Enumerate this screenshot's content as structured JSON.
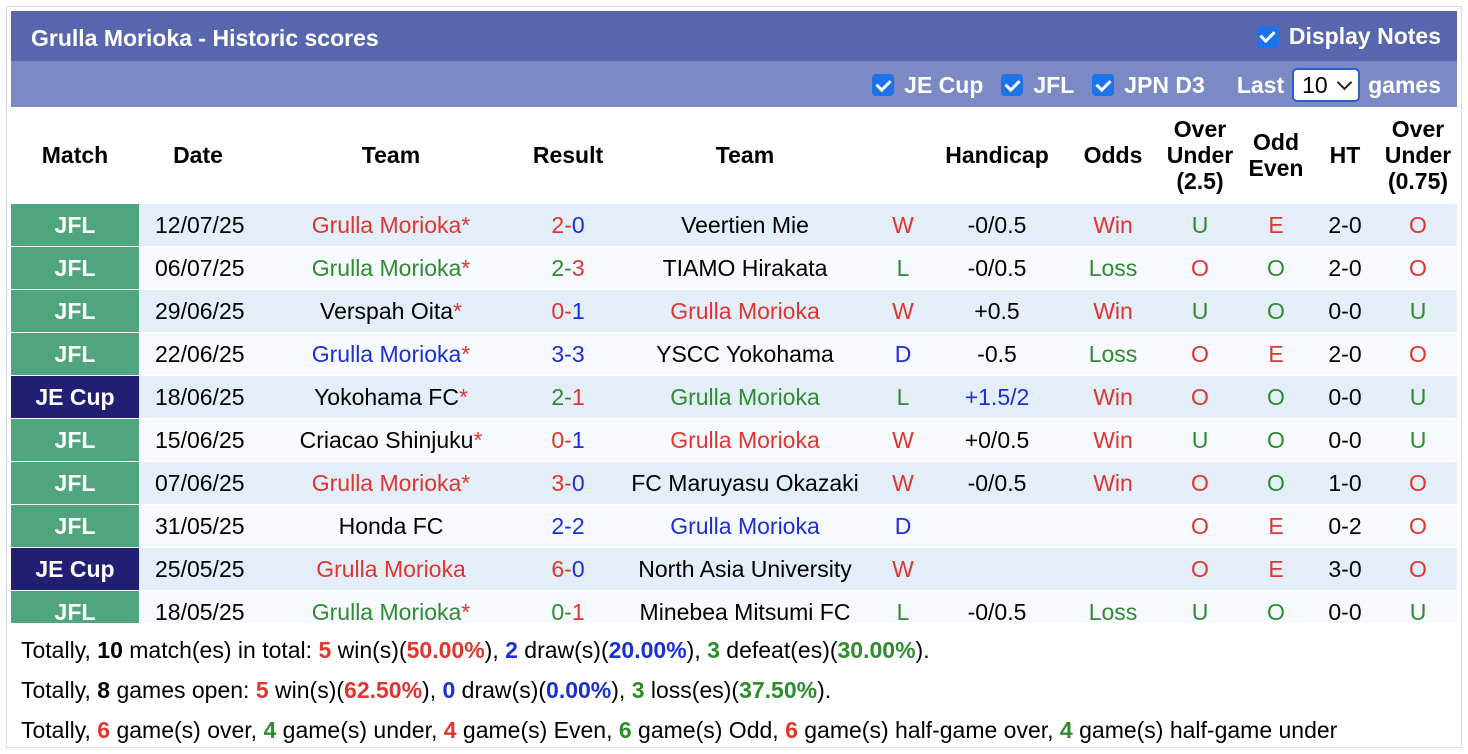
{
  "header": {
    "title": "Grulla Morioka - Historic scores",
    "display_notes_label": "Display Notes"
  },
  "filters": {
    "items": [
      "JE Cup",
      "JFL",
      "JPN D3"
    ],
    "last_label": "Last",
    "games_count": "10",
    "games_label": "games"
  },
  "columns": {
    "match": "Match",
    "date": "Date",
    "team1": "Team",
    "result": "Result",
    "team2": "Team",
    "handicap": "Handicap",
    "odds": "Odds",
    "ou_line1": "Over",
    "ou_line2": "Under",
    "ou_line3": "(2.5)",
    "oe_line1": "Odd",
    "oe_line2": "Even",
    "ht": "HT",
    "ou2_line1": "Over",
    "ou2_line2": "Under",
    "ou2_line3": "(0.75)"
  },
  "colors": {
    "red": "#e0352f",
    "green": "#2e8b2e",
    "blue": "#1a2fd4",
    "jfl": "#4fa67e",
    "jecup": "#211e73"
  },
  "rows": [
    {
      "comp": "JFL",
      "date": "12/07/25",
      "home": "Grulla Morioka",
      "home_star": "*",
      "home_color": "red",
      "home_goals": "2",
      "away_goals": "0",
      "score_color": "red",
      "away": "Veertien Mie",
      "away_star": "",
      "away_color": "black",
      "wld": "W",
      "wld_color": "red",
      "handicap": "-0/0.5",
      "hcp_color": "black",
      "odds": "Win",
      "odds_color": "red",
      "ou": "U",
      "ou_color": "green",
      "oe": "E",
      "oe_color": "red",
      "ht": "2-0",
      "ou2": "O",
      "ou2_color": "red"
    },
    {
      "comp": "JFL",
      "date": "06/07/25",
      "home": "Grulla Morioka",
      "home_star": "*",
      "home_color": "green",
      "home_goals": "2",
      "away_goals": "3",
      "score_color": "green",
      "away": "TIAMO Hirakata",
      "away_star": "",
      "away_color": "black",
      "wld": "L",
      "wld_color": "green",
      "handicap": "-0/0.5",
      "hcp_color": "black",
      "odds": "Loss",
      "odds_color": "green",
      "ou": "O",
      "ou_color": "red",
      "oe": "O",
      "oe_color": "green",
      "ht": "2-0",
      "ou2": "O",
      "ou2_color": "red"
    },
    {
      "comp": "JFL",
      "date": "29/06/25",
      "home": "Verspah Oita",
      "home_star": "*",
      "home_color": "black",
      "home_goals": "0",
      "away_goals": "1",
      "score_color": "red",
      "away": "Grulla Morioka",
      "away_star": "",
      "away_color": "red",
      "wld": "W",
      "wld_color": "red",
      "handicap": "+0.5",
      "hcp_color": "black",
      "odds": "Win",
      "odds_color": "red",
      "ou": "U",
      "ou_color": "green",
      "oe": "O",
      "oe_color": "green",
      "ht": "0-0",
      "ou2": "U",
      "ou2_color": "green"
    },
    {
      "comp": "JFL",
      "date": "22/06/25",
      "home": "Grulla Morioka",
      "home_star": "*",
      "home_color": "blue",
      "home_goals": "3",
      "away_goals": "3",
      "score_color": "blue",
      "away": "YSCC Yokohama",
      "away_star": "",
      "away_color": "black",
      "wld": "D",
      "wld_color": "blue",
      "handicap": "-0.5",
      "hcp_color": "black",
      "odds": "Loss",
      "odds_color": "green",
      "ou": "O",
      "ou_color": "red",
      "oe": "E",
      "oe_color": "red",
      "ht": "2-0",
      "ou2": "O",
      "ou2_color": "red"
    },
    {
      "comp": "JE Cup",
      "date": "18/06/25",
      "home": "Yokohama FC",
      "home_star": "*",
      "home_color": "black",
      "home_goals": "2",
      "away_goals": "1",
      "score_color": "green",
      "away": "Grulla Morioka",
      "away_star": "",
      "away_color": "green",
      "wld": "L",
      "wld_color": "green",
      "handicap": "+1.5/2",
      "hcp_color": "blue",
      "odds": "Win",
      "odds_color": "red",
      "ou": "O",
      "ou_color": "red",
      "oe": "O",
      "oe_color": "green",
      "ht": "0-0",
      "ou2": "U",
      "ou2_color": "green"
    },
    {
      "comp": "JFL",
      "date": "15/06/25",
      "home": "Criacao Shinjuku",
      "home_star": "*",
      "home_color": "black",
      "home_goals": "0",
      "away_goals": "1",
      "score_color": "red",
      "away": "Grulla Morioka",
      "away_star": "",
      "away_color": "red",
      "wld": "W",
      "wld_color": "red",
      "handicap": "+0/0.5",
      "hcp_color": "black",
      "odds": "Win",
      "odds_color": "red",
      "ou": "U",
      "ou_color": "green",
      "oe": "O",
      "oe_color": "green",
      "ht": "0-0",
      "ou2": "U",
      "ou2_color": "green"
    },
    {
      "comp": "JFL",
      "date": "07/06/25",
      "home": "Grulla Morioka",
      "home_star": "*",
      "home_color": "red",
      "home_goals": "3",
      "away_goals": "0",
      "score_color": "red",
      "away": "FC Maruyasu Okazaki",
      "away_star": "",
      "away_color": "black",
      "wld": "W",
      "wld_color": "red",
      "handicap": "-0/0.5",
      "hcp_color": "black",
      "odds": "Win",
      "odds_color": "red",
      "ou": "O",
      "ou_color": "red",
      "oe": "O",
      "oe_color": "green",
      "ht": "1-0",
      "ou2": "O",
      "ou2_color": "red"
    },
    {
      "comp": "JFL",
      "date": "31/05/25",
      "home": "Honda FC",
      "home_star": "",
      "home_color": "black",
      "home_goals": "2",
      "away_goals": "2",
      "score_color": "blue",
      "away": "Grulla Morioka",
      "away_star": "",
      "away_color": "blue",
      "wld": "D",
      "wld_color": "blue",
      "handicap": "",
      "hcp_color": "black",
      "odds": "",
      "odds_color": "black",
      "ou": "O",
      "ou_color": "red",
      "oe": "E",
      "oe_color": "red",
      "ht": "0-2",
      "ou2": "O",
      "ou2_color": "red"
    },
    {
      "comp": "JE Cup",
      "date": "25/05/25",
      "home": "Grulla Morioka",
      "home_star": "",
      "home_color": "red",
      "home_goals": "6",
      "away_goals": "0",
      "score_color": "red",
      "away": "North Asia University",
      "away_star": "",
      "away_color": "black",
      "wld": "W",
      "wld_color": "red",
      "handicap": "",
      "hcp_color": "black",
      "odds": "",
      "odds_color": "black",
      "ou": "O",
      "ou_color": "red",
      "oe": "E",
      "oe_color": "red",
      "ht": "3-0",
      "ou2": "O",
      "ou2_color": "red"
    },
    {
      "comp": "JFL",
      "date": "18/05/25",
      "home": "Grulla Morioka",
      "home_star": "*",
      "home_color": "green",
      "home_goals": "0",
      "away_goals": "1",
      "score_color": "green",
      "away": "Minebea Mitsumi FC",
      "away_star": "",
      "away_color": "black",
      "wld": "L",
      "wld_color": "green",
      "handicap": "-0/0.5",
      "hcp_color": "black",
      "odds": "Loss",
      "odds_color": "green",
      "ou": "U",
      "ou_color": "green",
      "oe": "O",
      "oe_color": "green",
      "ht": "0-0",
      "ou2": "U",
      "ou2_color": "green"
    }
  ],
  "summary": {
    "line1": {
      "p1": "Totally, ",
      "total": "10",
      "p2": " match(es) in total: ",
      "wins": "5",
      "p3": " win(s)(",
      "win_pct": "50.00%",
      "p4": "), ",
      "draws": "2",
      "p5": " draw(s)(",
      "draw_pct": "20.00%",
      "p6": "), ",
      "defeats": "3",
      "p7": " defeat(es)(",
      "defeat_pct": "30.00%",
      "p8": ")."
    },
    "line2": {
      "p1": "Totally, ",
      "total": "8",
      "p2": " games open: ",
      "wins": "5",
      "p3": " win(s)(",
      "win_pct": "62.50%",
      "p4": "), ",
      "draws": "0",
      "p5": " draw(s)(",
      "draw_pct": "0.00%",
      "p6": "), ",
      "losses": "3",
      "p7": " loss(es)(",
      "loss_pct": "37.50%",
      "p8": ")."
    },
    "line3": {
      "p1": "Totally, ",
      "over": "6",
      "p2": " game(s) over, ",
      "under": "4",
      "p3": " game(s) under, ",
      "even": "4",
      "p4": " game(s) Even, ",
      "odd": "6",
      "p5": " game(s) Odd, ",
      "hg_over": "6",
      "p6": " game(s) half-game over, ",
      "hg_under": "4",
      "p7": " game(s) half-game under"
    }
  }
}
